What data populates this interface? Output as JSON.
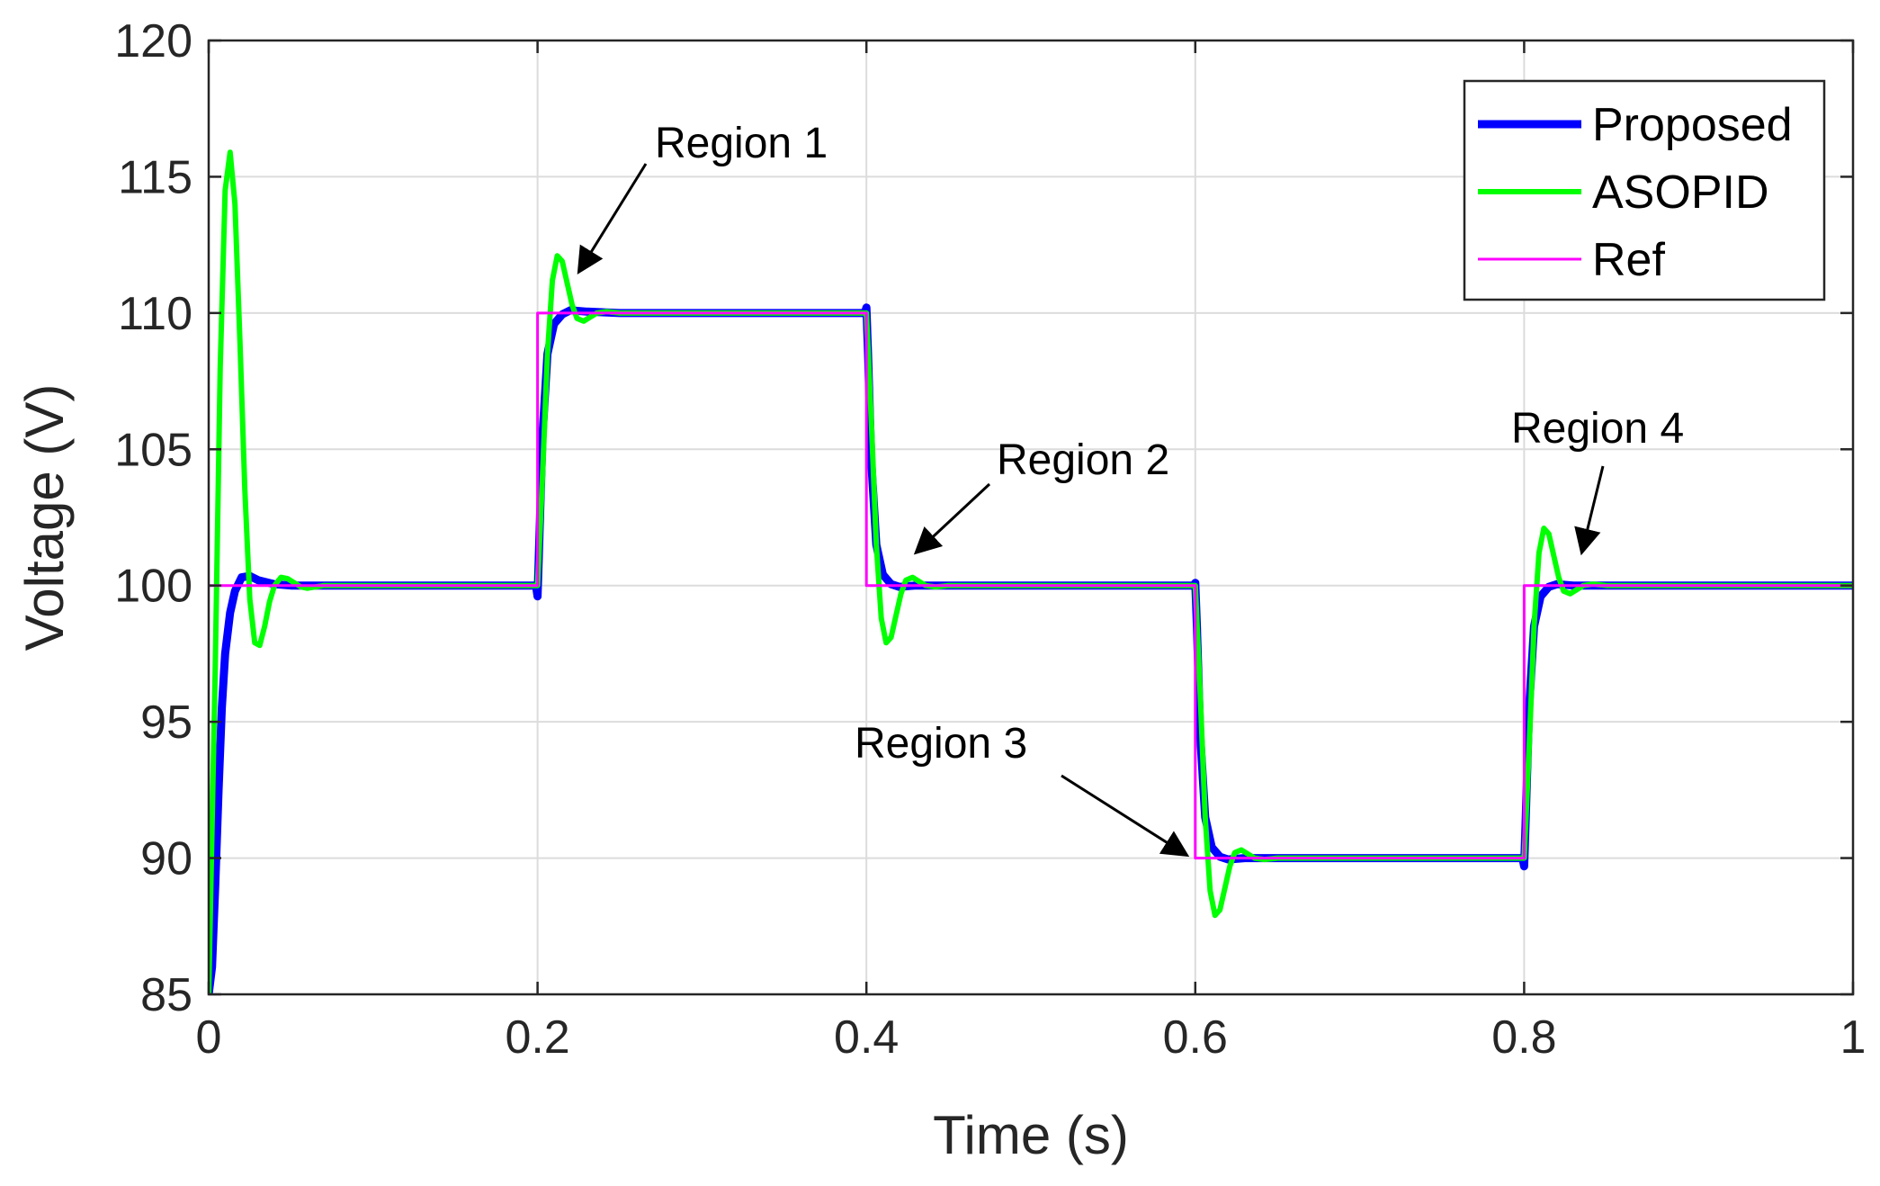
{
  "chart_data": {
    "type": "line",
    "title": "",
    "xlabel": "Time (s)",
    "ylabel": "Voltage (V)",
    "xlim": [
      0,
      1
    ],
    "ylim": [
      85,
      120
    ],
    "xticks": [
      0,
      0.2,
      0.4,
      0.6,
      0.8,
      1
    ],
    "xtick_labels": [
      "0",
      "0.2",
      "0.4",
      "0.6",
      "0.8",
      "1"
    ],
    "yticks": [
      85,
      90,
      95,
      100,
      105,
      110,
      115,
      120
    ],
    "ytick_labels": [
      "85",
      "90",
      "95",
      "100",
      "105",
      "110",
      "115",
      "120"
    ],
    "grid": true,
    "legend_position": "top-right",
    "series": [
      {
        "name": "Proposed",
        "color": "#0000ff",
        "x": [
          0,
          0.002,
          0.004,
          0.006,
          0.008,
          0.01,
          0.013,
          0.016,
          0.02,
          0.025,
          0.03,
          0.04,
          0.05,
          0.07,
          0.1,
          0.199,
          0.2,
          0.201,
          0.203,
          0.206,
          0.21,
          0.215,
          0.22,
          0.23,
          0.25,
          0.3,
          0.399,
          0.4,
          0.401,
          0.403,
          0.406,
          0.41,
          0.415,
          0.42,
          0.43,
          0.45,
          0.5,
          0.599,
          0.6,
          0.601,
          0.603,
          0.606,
          0.61,
          0.615,
          0.62,
          0.63,
          0.65,
          0.7,
          0.799,
          0.8,
          0.801,
          0.803,
          0.806,
          0.81,
          0.815,
          0.82,
          0.83,
          0.85,
          0.9,
          1.0
        ],
        "y": [
          85,
          86,
          89,
          92.5,
          95.5,
          97.5,
          99.0,
          99.8,
          100.3,
          100.35,
          100.2,
          100.05,
          100.0,
          100.0,
          100.0,
          100.0,
          99.6,
          101.5,
          105.5,
          108.5,
          109.6,
          109.95,
          110.1,
          110.05,
          110.0,
          110.0,
          110.0,
          110.2,
          108.5,
          104.5,
          101.5,
          100.4,
          100.05,
          99.95,
          100.0,
          100.0,
          100.0,
          100.0,
          100.1,
          98.5,
          94.5,
          91.5,
          90.4,
          90.05,
          89.95,
          90.0,
          90.0,
          90.0,
          90.0,
          89.7,
          91.5,
          95.5,
          98.5,
          99.6,
          99.95,
          100.05,
          100.0,
          100.0,
          100.0,
          100.0
        ]
      },
      {
        "name": "ASOPID",
        "color": "#00ff00",
        "x": [
          0,
          0.004,
          0.007,
          0.01,
          0.013,
          0.016,
          0.019,
          0.022,
          0.025,
          0.028,
          0.031,
          0.034,
          0.037,
          0.04,
          0.044,
          0.048,
          0.052,
          0.056,
          0.06,
          0.065,
          0.07,
          0.08,
          0.1,
          0.2,
          0.203,
          0.206,
          0.209,
          0.212,
          0.215,
          0.218,
          0.221,
          0.224,
          0.228,
          0.232,
          0.236,
          0.242,
          0.25,
          0.26,
          0.28,
          0.3,
          0.4,
          0.403,
          0.406,
          0.409,
          0.412,
          0.415,
          0.418,
          0.421,
          0.424,
          0.428,
          0.432,
          0.436,
          0.442,
          0.45,
          0.46,
          0.48,
          0.5,
          0.6,
          0.603,
          0.606,
          0.609,
          0.612,
          0.615,
          0.618,
          0.621,
          0.624,
          0.628,
          0.632,
          0.636,
          0.642,
          0.65,
          0.66,
          0.68,
          0.7,
          0.8,
          0.803,
          0.806,
          0.809,
          0.812,
          0.815,
          0.818,
          0.821,
          0.824,
          0.828,
          0.832,
          0.836,
          0.842,
          0.85,
          0.86,
          0.88,
          0.9,
          1.0
        ],
        "y": [
          85,
          97,
          108,
          114.5,
          115.9,
          114,
          109,
          103.5,
          99.5,
          97.9,
          97.8,
          98.5,
          99.4,
          100.0,
          100.3,
          100.25,
          100.1,
          99.95,
          99.9,
          99.95,
          100.0,
          100.0,
          100.0,
          100.0,
          104,
          108.5,
          111.2,
          112.1,
          111.9,
          111.1,
          110.3,
          109.8,
          109.7,
          109.85,
          110.0,
          110.05,
          110.0,
          110.0,
          110.0,
          110.0,
          110.0,
          106,
          101.5,
          98.8,
          97.9,
          98.1,
          98.9,
          99.7,
          100.2,
          100.3,
          100.15,
          100.0,
          99.95,
          100.0,
          100.0,
          100.0,
          100.0,
          100.0,
          96,
          91.5,
          88.8,
          87.9,
          88.1,
          88.9,
          89.7,
          90.2,
          90.3,
          90.15,
          90.0,
          89.95,
          90.0,
          90.0,
          90.0,
          90.0,
          90.0,
          94,
          98.5,
          101.2,
          102.1,
          101.9,
          101.1,
          100.3,
          99.8,
          99.7,
          99.85,
          100.0,
          100.05,
          100.0,
          100.0,
          100.0,
          100.0,
          100.0
        ]
      },
      {
        "name": "Ref",
        "color": "#ff00ff",
        "x": [
          0,
          0.2,
          0.2,
          0.4,
          0.4,
          0.6,
          0.6,
          0.8,
          0.8,
          1.0
        ],
        "y": [
          100,
          100,
          110,
          110,
          100,
          100,
          90,
          90,
          100,
          100
        ]
      }
    ],
    "annotations": [
      {
        "text": "Region 1",
        "point_x": 0.225,
        "point_y": 111.5
      },
      {
        "text": "Region 2",
        "point_x": 0.43,
        "point_y": 101.2
      },
      {
        "text": "Region 3",
        "point_x": 0.595,
        "point_y": 90.1
      },
      {
        "text": "Region 4",
        "point_x": 0.835,
        "point_y": 101.2
      }
    ]
  }
}
